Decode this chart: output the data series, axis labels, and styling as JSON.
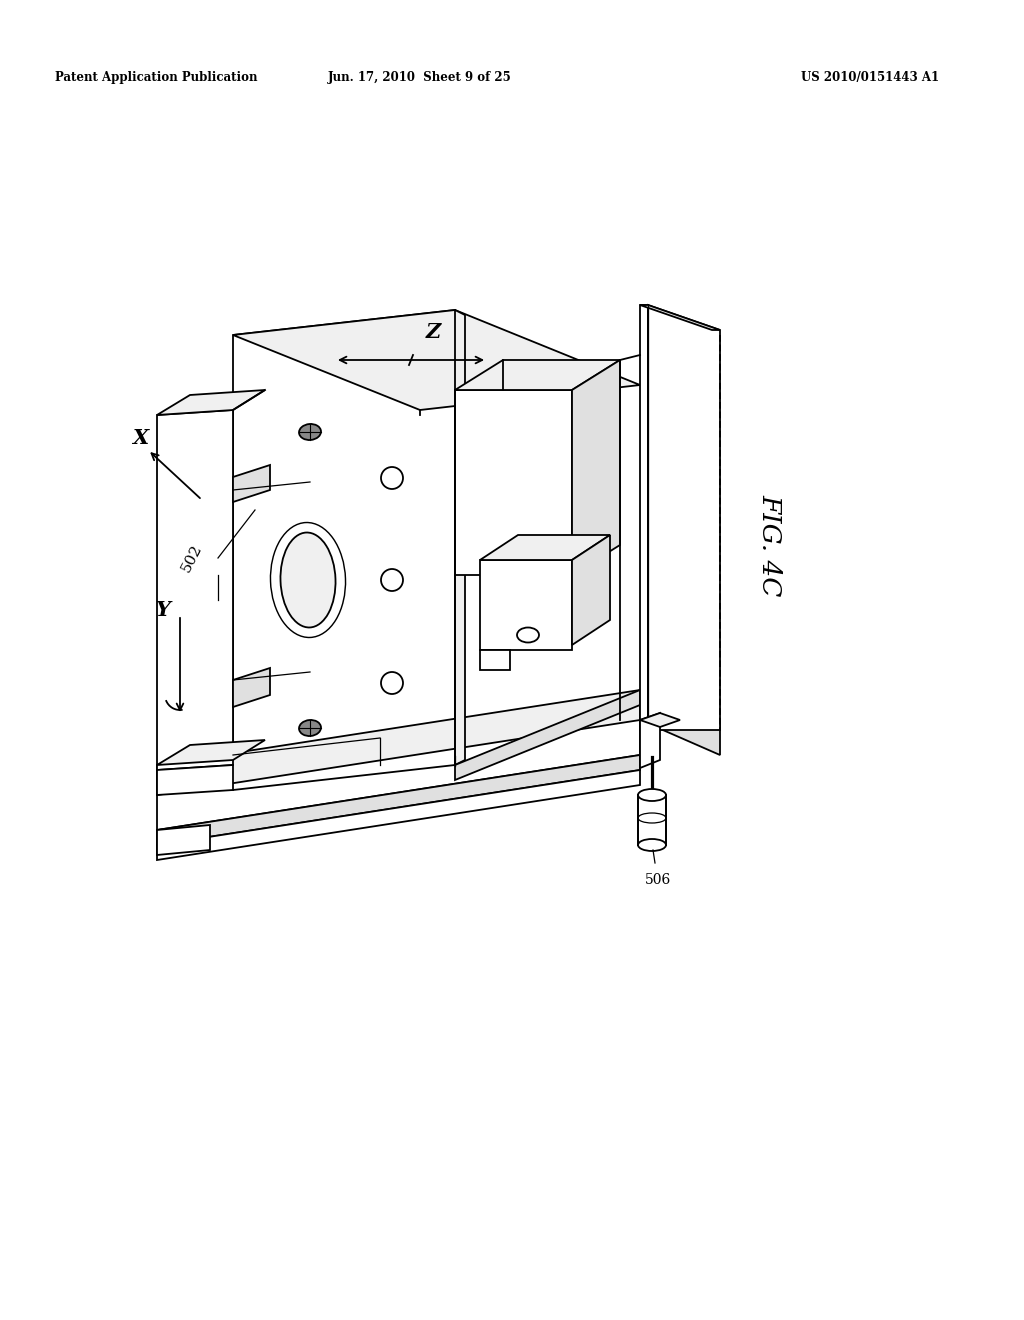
{
  "bg_color": "#ffffff",
  "header_left": "Patent Application Publication",
  "header_mid": "Jun. 17, 2010  Sheet 9 of 25",
  "header_right": "US 2010/0151443 A1",
  "fig_label": "FIG. 4C",
  "label_502": "502",
  "label_506": "506",
  "axis_x_label": "X",
  "axis_y_label": "Y",
  "axis_z_label": "Z",
  "lc": "#000000",
  "lw": 1.3,
  "white": "#ffffff",
  "light": "#f0f0f0",
  "mid": "#e0e0e0",
  "dark": "#c8c8c8"
}
